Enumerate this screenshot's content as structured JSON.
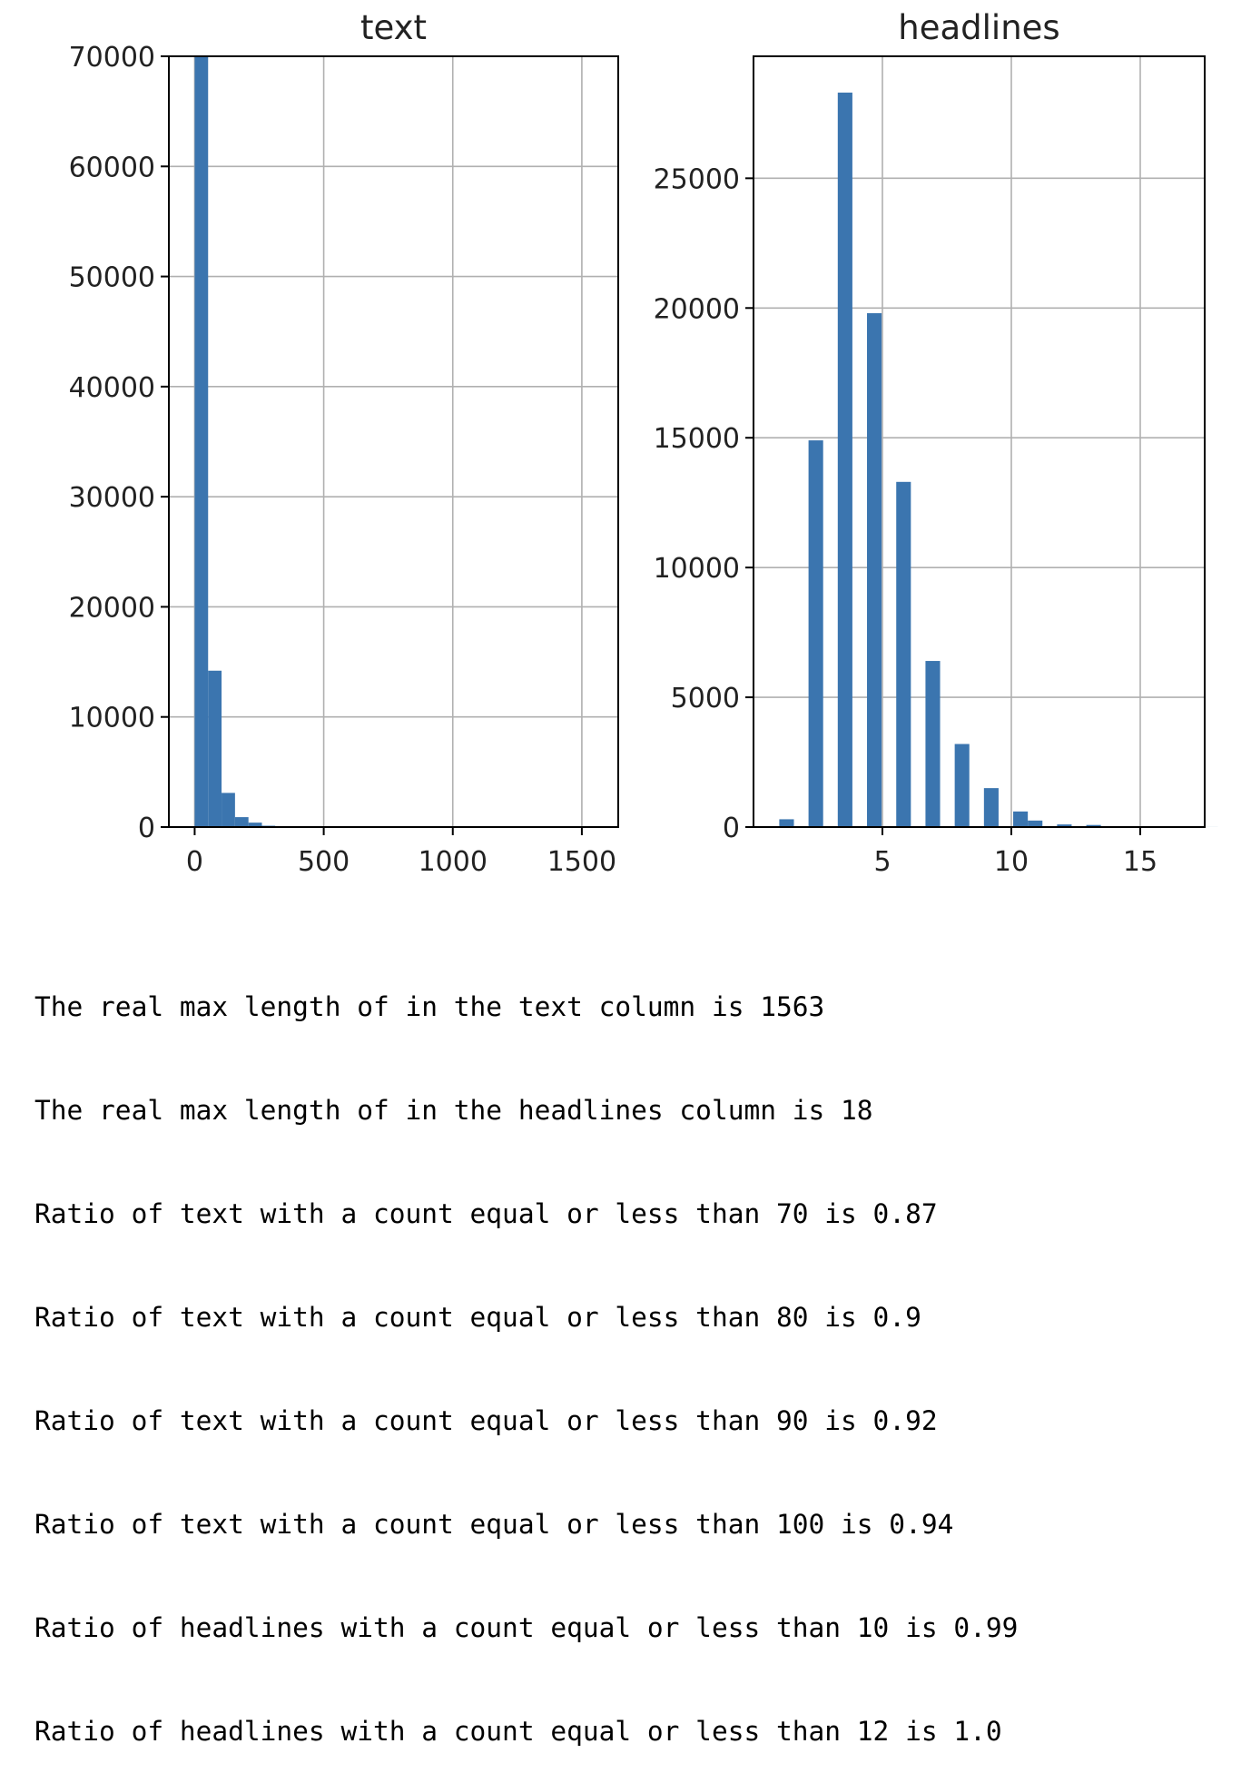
{
  "chart_data": [
    {
      "type": "bar",
      "title": "text",
      "xlabel": "",
      "ylabel": "",
      "grid": true,
      "xlim": [
        -100,
        1641
      ],
      "ylim": [
        0,
        70000
      ],
      "xticks": [
        0,
        500,
        1000,
        1500
      ],
      "xtick_labels": [
        "0",
        "500",
        "1000",
        "1500"
      ],
      "yticks": [
        0,
        10000,
        20000,
        30000,
        40000,
        50000,
        60000,
        70000
      ],
      "ytick_labels": [
        "0",
        "10000",
        "20000",
        "30000",
        "40000",
        "50000",
        "60000",
        "70000"
      ],
      "bin_start": 0,
      "bin_width": 52.1,
      "values": [
        70000,
        14200,
        3100,
        900,
        400,
        120,
        60,
        30,
        15,
        8,
        5,
        3,
        2,
        1,
        1,
        1,
        0,
        0,
        0,
        0,
        0,
        0,
        0,
        0,
        0,
        0,
        0,
        0,
        0,
        1
      ],
      "bar_color": "#3b75af"
    },
    {
      "type": "bar",
      "title": "headlines",
      "xlabel": "",
      "ylabel": "",
      "grid": true,
      "xlim": [
        0,
        17.5
      ],
      "ylim": [
        0,
        29700
      ],
      "xticks": [
        5,
        10,
        15
      ],
      "xtick_labels": [
        "5",
        "10",
        "15"
      ],
      "yticks": [
        0,
        5000,
        10000,
        15000,
        20000,
        25000
      ],
      "ytick_labels": [
        "0",
        "5000",
        "10000",
        "15000",
        "20000",
        "25000"
      ],
      "bin_start": 1,
      "bin_width": 0.567,
      "values": [
        300,
        0,
        14900,
        0,
        28300,
        0,
        19800,
        0,
        13300,
        0,
        6400,
        0,
        3200,
        0,
        1500,
        0,
        600,
        250,
        0,
        100,
        0,
        80,
        0,
        20,
        0,
        10,
        0,
        5,
        0,
        2
      ],
      "bar_color": "#3b75af"
    }
  ],
  "output": {
    "lines": [
      "The real max length of in the text column is 1563",
      "The real max length of in the headlines column is 18",
      "Ratio of text with a count equal or less than 70 is 0.87",
      "Ratio of text with a count equal or less than 80 is 0.9",
      "Ratio of text with a count equal or less than 90 is 0.92",
      "Ratio of text with a count equal or less than 100 is 0.94",
      "Ratio of headlines with a count equal or less than 10 is 0.99",
      "Ratio of headlines with a count equal or less than 12 is 1.0"
    ]
  }
}
